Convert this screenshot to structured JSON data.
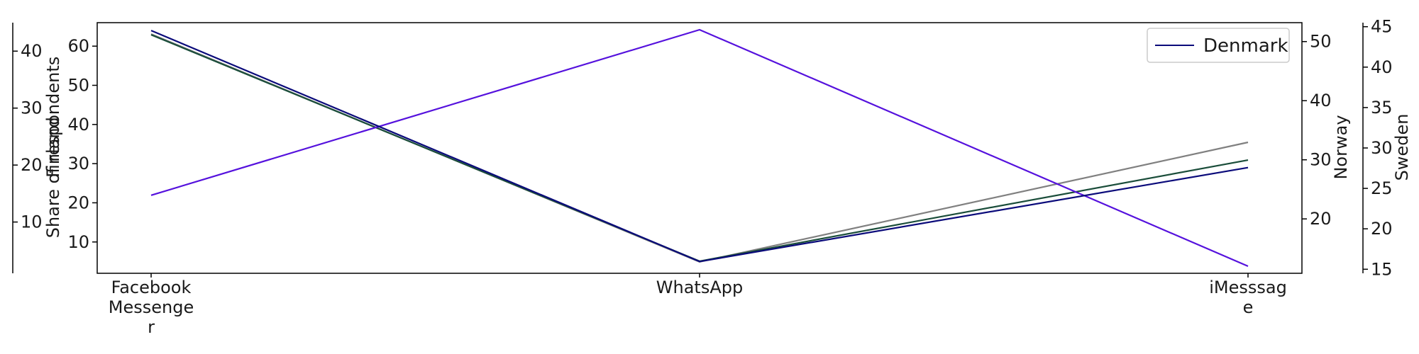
{
  "chart_data": {
    "type": "line",
    "categories": [
      "Facebook Messenger",
      "WhatsApp",
      "iMesssage"
    ],
    "category_label_lines": [
      [
        "Facebook",
        "Messenge",
        "r"
      ],
      [
        "WhatsApp"
      ],
      [
        "iMesssag",
        "e"
      ]
    ],
    "axes": {
      "denmark": {
        "label": "Share of respondents",
        "ylim": [
          2,
          66
        ],
        "ticks": [
          10,
          20,
          30,
          40,
          50,
          60
        ]
      },
      "finland": {
        "label": "Finland",
        "ylim": [
          1,
          45
        ],
        "ticks": [
          10,
          20,
          30,
          40
        ]
      },
      "norway": {
        "label": "Norway",
        "ylim": [
          10.8,
          53.2
        ],
        "ticks": [
          20,
          30,
          40,
          50
        ]
      },
      "sweden": {
        "label": "Sweden",
        "ylim": [
          14.5,
          45.5
        ],
        "ticks": [
          15,
          20,
          25,
          30,
          35,
          40,
          45
        ]
      }
    },
    "series": [
      {
        "axis": "finland",
        "color": "#808080",
        "values": [
          43,
          3,
          24
        ]
      },
      {
        "axis": "sweden",
        "color": "#1a4d3a",
        "values": [
          44,
          16,
          28.5
        ]
      },
      {
        "axis": "norway",
        "color": "#5511dd",
        "values": [
          24,
          52,
          12
        ]
      },
      {
        "name": "Denmark",
        "axis": "denmark",
        "color": "#0a0a7a",
        "values": [
          64,
          5,
          29
        ]
      }
    ],
    "legend": {
      "position": "top-right"
    },
    "grid": false
  }
}
